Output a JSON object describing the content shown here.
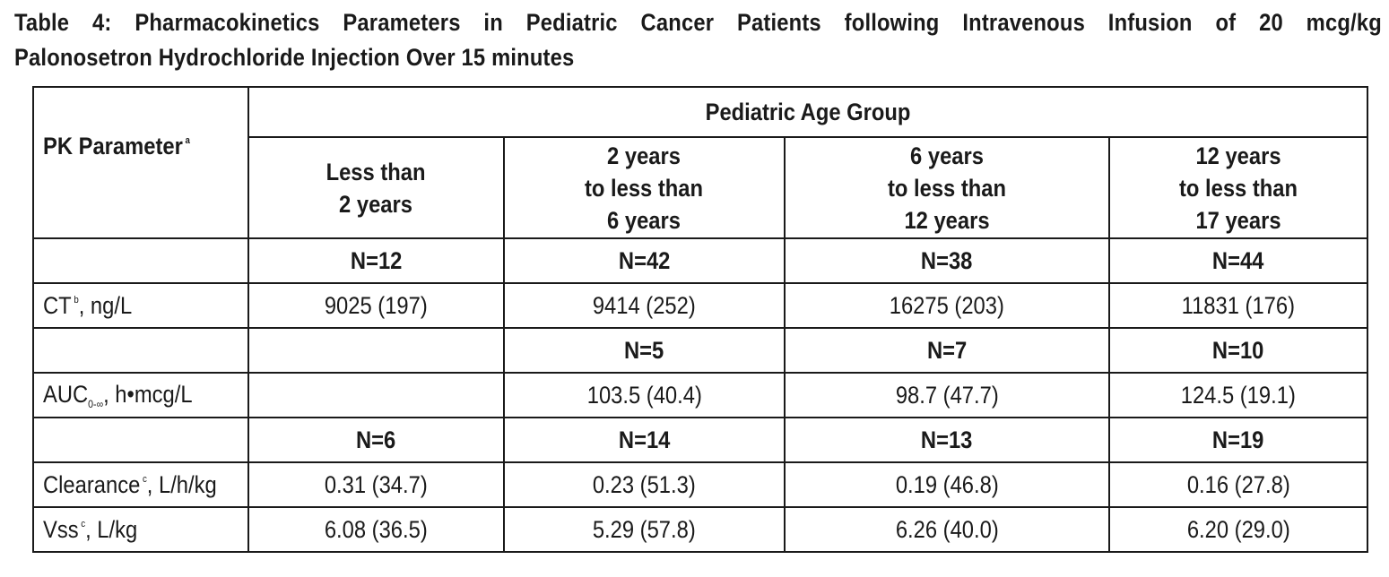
{
  "caption": {
    "line1_words": [
      "Table",
      "4:",
      "Pharmacokinetics",
      "Parameters",
      "in",
      "Pediatric",
      "Cancer",
      "Patients",
      "following",
      "Intravenous",
      "Infusion",
      "of",
      "20",
      "mcg/kg"
    ],
    "line2": "Palonosetron Hydrochloride Injection Over 15 minutes"
  },
  "header": {
    "param_label": "PK Parameter",
    "param_footnote": "a",
    "group_label": "Pediatric Age Group",
    "age_groups": [
      {
        "lines": [
          "Less than",
          "2 years"
        ]
      },
      {
        "lines": [
          "2 years",
          "to less than",
          "6 years"
        ]
      },
      {
        "lines": [
          "6 years",
          "to less than",
          "12 years"
        ]
      },
      {
        "lines": [
          "12 years",
          "to less than",
          "17 years"
        ]
      }
    ]
  },
  "rows": [
    {
      "kind": "n",
      "values": [
        "N=12",
        "N=42",
        "N=38",
        "N=44"
      ]
    },
    {
      "kind": "param",
      "name": "CT",
      "footnote": "b",
      "unit": ", ng/L",
      "values": [
        "9025 (197)",
        "9414 (252)",
        "16275 (203)",
        "11831 (176)"
      ]
    },
    {
      "kind": "n",
      "values": [
        "",
        "N=5",
        "N=7",
        "N=10"
      ]
    },
    {
      "kind": "param",
      "name": "AUC",
      "subscript": "0-∞",
      "unit": ", h•mcg/L",
      "values": [
        "",
        "103.5 (40.4)",
        "98.7 (47.7)",
        "124.5 (19.1)"
      ]
    },
    {
      "kind": "n",
      "values": [
        "N=6",
        "N=14",
        "N=13",
        "N=19"
      ]
    },
    {
      "kind": "param",
      "name": "Clearance",
      "footnote": "c",
      "unit": ", L/h/kg",
      "values": [
        "0.31 (34.7)",
        "0.23 (51.3)",
        "0.19 (46.8)",
        "0.16 (27.8)"
      ]
    },
    {
      "kind": "param",
      "name": "Vss",
      "footnote": "c",
      "unit": ", L/kg",
      "values": [
        "6.08 (36.5)",
        "5.29 (57.8)",
        "6.26 (40.0)",
        "6.20 (29.0)"
      ]
    }
  ]
}
